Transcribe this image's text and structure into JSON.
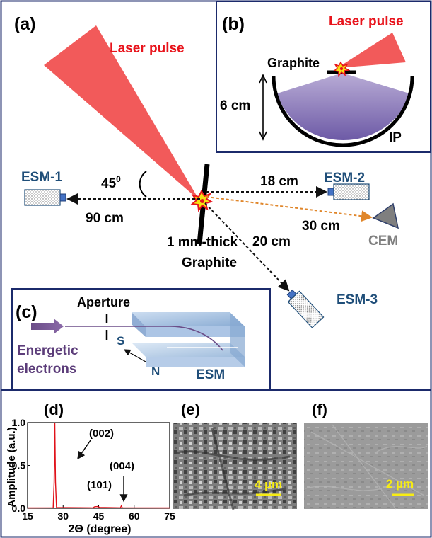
{
  "panels": {
    "a": {
      "label": "(a)",
      "laser": "Laser pulse",
      "angle_value": "45",
      "angle_sup": "0",
      "target_line1": "1 mm-thick",
      "target_line2": "Graphite",
      "detectors": {
        "esm1": "ESM-1",
        "esm2": "ESM-2",
        "esm3": "ESM-3",
        "cem": "CEM"
      },
      "distances": {
        "esm1": "90 cm",
        "esm2": "18 cm",
        "cem": "30 cm",
        "esm3": "20 cm"
      }
    },
    "b": {
      "label": "(b)",
      "laser": "Laser pulse",
      "target": "Graphite",
      "distance": "6 cm",
      "plate": "IP"
    },
    "c": {
      "label": "(c)",
      "aperture": "Aperture",
      "electrons_line1": "Energetic",
      "electrons_line2": "electrons",
      "pole_s": "S",
      "pole_n": "N",
      "device": "ESM"
    },
    "d": {
      "label": "(d)"
    },
    "e": {
      "label": "(e)",
      "scale": "4 µm"
    },
    "f": {
      "label": "(f)",
      "scale": "2 µm"
    }
  },
  "colors": {
    "laser": "#f25a5a",
    "laser_text": "#e8141c",
    "detector_text": "#1f4e79",
    "electron_text": "#5c3d7a",
    "cem": "#7f7f7f",
    "scale_bar": "#f7ec13",
    "frame": "#1b2a6b",
    "xrd_line": "#e0121a"
  },
  "chart_data": {
    "type": "line",
    "title": "",
    "xlabel": "2Θ (degree)",
    "ylabel": "Amplitude (a.u.)",
    "xlim": [
      15,
      75
    ],
    "ylim": [
      0,
      1.0
    ],
    "xticks": [
      "15",
      "30",
      "45",
      "60",
      "75"
    ],
    "yticks": [
      "0.0",
      "0.5",
      "1.0"
    ],
    "peaks": [
      {
        "x": 26.5,
        "y": 1.0,
        "label": "(002)"
      },
      {
        "x": 44.5,
        "y": 0.02,
        "label": "(101)"
      },
      {
        "x": 54.6,
        "y": 0.03,
        "label": "(004)"
      }
    ],
    "series": [
      {
        "values": [
          [
            15,
            0.004
          ],
          [
            25.8,
            0.006
          ],
          [
            26.2,
            0.3
          ],
          [
            26.5,
            1.0
          ],
          [
            26.8,
            0.3
          ],
          [
            27.2,
            0.008
          ],
          [
            42.5,
            0.005
          ],
          [
            43.4,
            0.018
          ],
          [
            44.5,
            0.02
          ],
          [
            45.5,
            0.01
          ],
          [
            54.2,
            0.006
          ],
          [
            54.6,
            0.03
          ],
          [
            55.0,
            0.006
          ],
          [
            75,
            0.004
          ]
        ]
      }
    ]
  }
}
